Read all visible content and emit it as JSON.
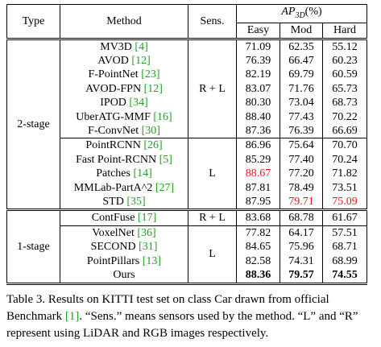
{
  "header": {
    "type": "Type",
    "method": "Method",
    "sens": "Sens.",
    "ap_main": "AP",
    "ap_sub": "3D",
    "ap_unit": "(%)",
    "easy": "Easy",
    "mod": "Mod",
    "hard": "Hard"
  },
  "colors": {
    "reference": "#21a021",
    "second_best": "#e8171c"
  },
  "groups": [
    {
      "type": "2-stage",
      "blocks": [
        {
          "sens": "R + L",
          "rows": [
            {
              "name": "MV3D",
              "ref": "[4]",
              "easy": "71.09",
              "mod": "62.35",
              "hard": "55.12"
            },
            {
              "name": "AVOD",
              "ref": "[12]",
              "easy": "76.39",
              "mod": "66.47",
              "hard": "60.23"
            },
            {
              "name": "F-PointNet",
              "ref": "[23]",
              "easy": "82.19",
              "mod": "69.79",
              "hard": "60.59"
            },
            {
              "name": "AVOD-FPN",
              "ref": "[12]",
              "easy": "83.07",
              "mod": "71.76",
              "hard": "65.73"
            },
            {
              "name": "IPOD",
              "ref": "[34]",
              "easy": "80.30",
              "mod": "73.04",
              "hard": "68.73"
            },
            {
              "name": "UberATG-MMF",
              "ref": "[16]",
              "easy": "88.40",
              "mod": "77.43",
              "hard": "70.22"
            },
            {
              "name": "F-ConvNet",
              "ref": "[30]",
              "easy": "87.36",
              "mod": "76.39",
              "hard": "66.69"
            }
          ]
        },
        {
          "sens": "L",
          "rows": [
            {
              "name": "PointRCNN",
              "ref": "[26]",
              "easy": "86.96",
              "mod": "75.64",
              "hard": "70.70"
            },
            {
              "name": "Fast Point-RCNN",
              "ref": "[5]",
              "easy": "85.29",
              "mod": "77.40",
              "hard": "70.24"
            },
            {
              "name": "Patches",
              "ref": "[14]",
              "easy": "88.67",
              "mod": "77.20",
              "hard": "71.82"
            },
            {
              "name": "MMLab-PartA^2",
              "ref": "[27]",
              "easy": "87.81",
              "mod": "78.49",
              "hard": "73.51"
            },
            {
              "name": "STD",
              "ref": "[35]",
              "easy": "87.95",
              "mod": "79.71",
              "hard": "75.09"
            }
          ]
        }
      ]
    },
    {
      "type": "1-stage",
      "blocks": [
        {
          "sens": "R + L",
          "rows": [
            {
              "name": "ContFuse",
              "ref": "[17]",
              "easy": "83.68",
              "mod": "68.78",
              "hard": "61.67"
            }
          ]
        },
        {
          "sens": "L",
          "rows": [
            {
              "name": "VoxelNet",
              "ref": "[36]",
              "easy": "77.82",
              "mod": "64.17",
              "hard": "57.51"
            },
            {
              "name": "SECOND",
              "ref": "[31]",
              "easy": "84.65",
              "mod": "75.96",
              "hard": "68.71"
            },
            {
              "name": "PointPillars",
              "ref": "[13]",
              "easy": "82.58",
              "mod": "74.31",
              "hard": "68.99"
            },
            {
              "name": "Ours",
              "ref": "",
              "easy": "88.36",
              "mod": "79.57",
              "hard": "74.55"
            }
          ]
        }
      ]
    }
  ],
  "caption": {
    "part1": "Table 3. Results on KITTI test set on class Car drawn from official Benchmark ",
    "ref": "[1]",
    "part2": ". “Sens.” means sensors used by the method. “L” and “R” represent using LiDAR and RGB images respectively."
  }
}
